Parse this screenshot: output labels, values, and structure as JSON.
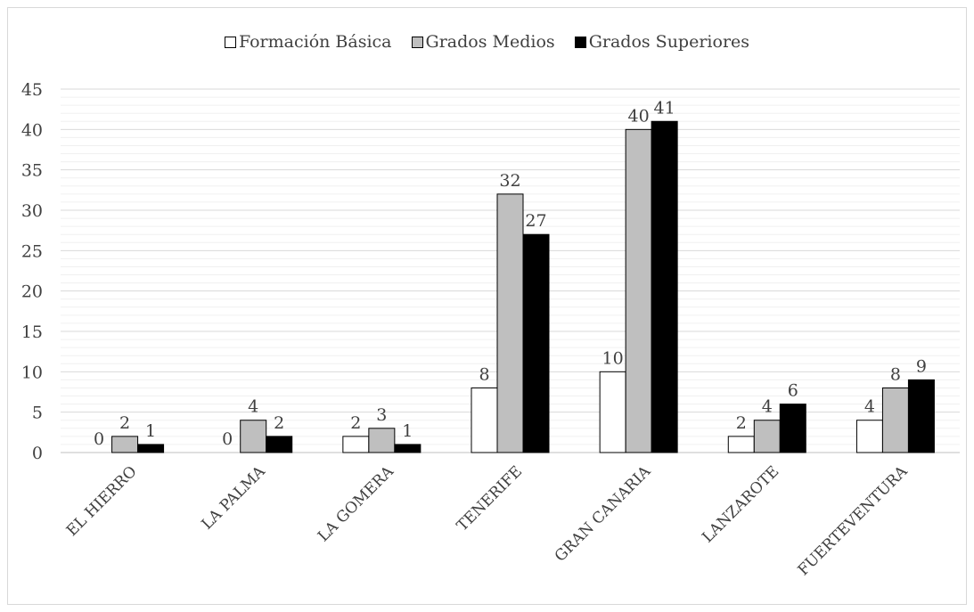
{
  "chart_data": {
    "type": "bar",
    "title": "",
    "xlabel": "",
    "ylabel": "",
    "ylim": [
      0,
      45
    ],
    "ytick_step": 5,
    "yticks": [
      "0",
      "5",
      "10",
      "15",
      "20",
      "25",
      "30",
      "35",
      "40",
      "45"
    ],
    "grid": true,
    "legend_position": "top",
    "categories": [
      "EL HIERRO",
      "LA PALMA",
      "LA GOMERA",
      "TENERIFE",
      "GRAN CANARIA",
      "LANZAROTE",
      "FUERTEVENTURA"
    ],
    "series": [
      {
        "name": "Formación Básica",
        "color": "#ffffff",
        "values": [
          0,
          0,
          2,
          8,
          10,
          2,
          4
        ]
      },
      {
        "name": "Grados Medios",
        "color": "#bfbfbf",
        "values": [
          2,
          4,
          3,
          32,
          40,
          4,
          8
        ]
      },
      {
        "name": "Grados Superiores",
        "color": "#000000",
        "values": [
          1,
          2,
          1,
          27,
          41,
          6,
          9
        ]
      }
    ]
  }
}
